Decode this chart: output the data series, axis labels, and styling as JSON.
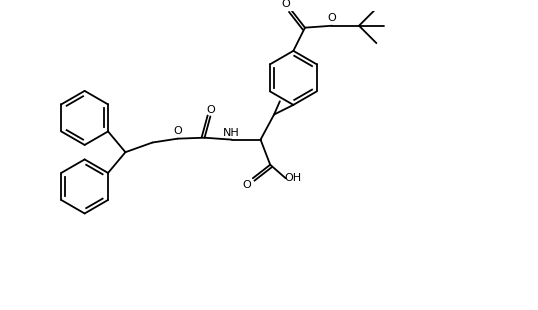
{
  "bg": "#ffffff",
  "lc": "#000000",
  "lw": 1.3,
  "fig_width": 5.38,
  "fig_height": 3.1,
  "dpi": 100,
  "xlim": [
    0,
    538
  ],
  "ylim": [
    0,
    310
  ]
}
